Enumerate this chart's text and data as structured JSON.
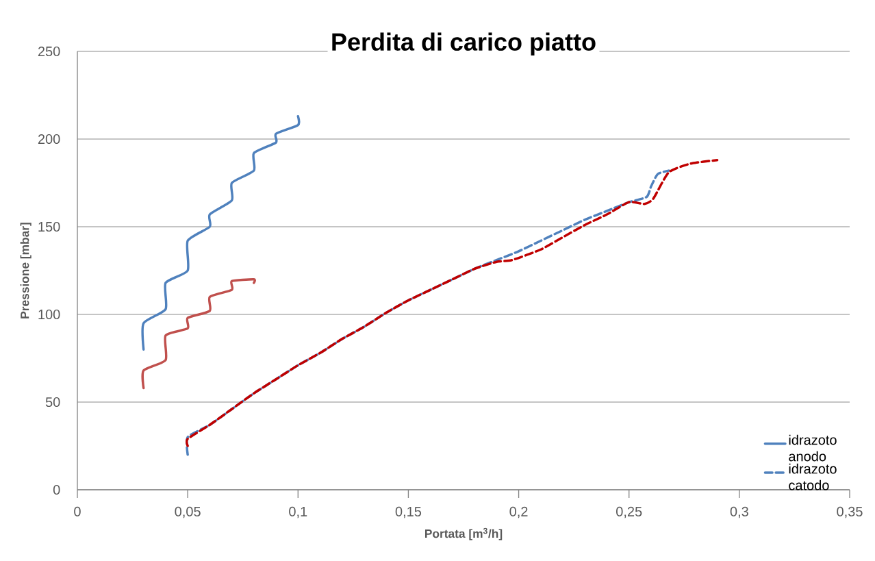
{
  "chart_data": {
    "type": "line",
    "title": "Perdita di carico piatto",
    "xlabel": "Portata [m$^{3}$/h]",
    "ylabel": "Pressione [mbar]",
    "xlim": [
      0,
      0.35
    ],
    "ylim": [
      0,
      250
    ],
    "xticks": [
      0,
      {
        "value": 0.05,
        "label": "0,05"
      },
      {
        "value": 0.1,
        "label": "0,1"
      },
      {
        "value": 0.15,
        "label": "0,15"
      },
      {
        "value": 0.2,
        "label": "0,2"
      },
      {
        "value": 0.25,
        "label": "0,25"
      },
      {
        "value": 0.3,
        "label": "0,3"
      },
      {
        "value": 0.35,
        "label": "0,35"
      }
    ],
    "yticks": [
      0,
      50,
      100,
      150,
      200,
      250
    ],
    "grid": "y",
    "legend": "bottom right",
    "marker": "none",
    "series": [
      {
        "name": "idrazoto anodo",
        "color": "#4f81bd",
        "line_style": "solid",
        "x": [
          0.03,
          0.03,
          0.04,
          0.04,
          0.05,
          0.05,
          0.06,
          0.06,
          0.07,
          0.07,
          0.08,
          0.08,
          0.09,
          0.09,
          0.1,
          0.1
        ],
        "values": [
          80,
          95,
          103,
          118,
          125,
          142,
          150,
          157,
          165,
          175,
          182,
          192,
          198,
          203,
          208,
          213
        ]
      },
      {
        "color": "#c0504d",
        "line_style": "solid",
        "x": [
          0.03,
          0.03,
          0.04,
          0.04,
          0.05,
          0.05,
          0.06,
          0.06,
          0.07,
          0.07,
          0.08,
          0.08
        ],
        "values": [
          58,
          68,
          74,
          88,
          92,
          98,
          102,
          110,
          114,
          119,
          120,
          118
        ]
      },
      {
        "name": "idrazoto catodo",
        "color": "#4f81bd",
        "line_style": "dashed",
        "x": [
          0.05,
          0.05,
          0.06,
          0.07,
          0.08,
          0.09,
          0.1,
          0.11,
          0.12,
          0.13,
          0.14,
          0.15,
          0.16,
          0.17,
          0.18,
          0.19,
          0.2,
          0.21,
          0.22,
          0.23,
          0.24,
          0.25,
          0.258,
          0.26,
          0.263,
          0.268
        ],
        "values": [
          20,
          30,
          37,
          46,
          55,
          63,
          71,
          78,
          86,
          93,
          101,
          108,
          114,
          120,
          126,
          131,
          136,
          142,
          148,
          154,
          159,
          164,
          167,
          173,
          180,
          182
        ]
      },
      {
        "color": "#c00000",
        "line_style": "dashed",
        "x": [
          0.05,
          0.05,
          0.06,
          0.07,
          0.08,
          0.09,
          0.1,
          0.11,
          0.12,
          0.13,
          0.14,
          0.15,
          0.16,
          0.17,
          0.18,
          0.19,
          0.197,
          0.21,
          0.22,
          0.23,
          0.24,
          0.25,
          0.257,
          0.261,
          0.268,
          0.278,
          0.29
        ],
        "values": [
          25,
          29,
          37,
          46,
          55,
          63,
          71,
          78,
          86,
          93,
          101,
          108,
          114,
          120,
          126,
          130,
          131,
          137,
          144,
          151,
          157,
          164,
          163,
          166,
          181,
          186,
          188
        ]
      }
    ]
  }
}
